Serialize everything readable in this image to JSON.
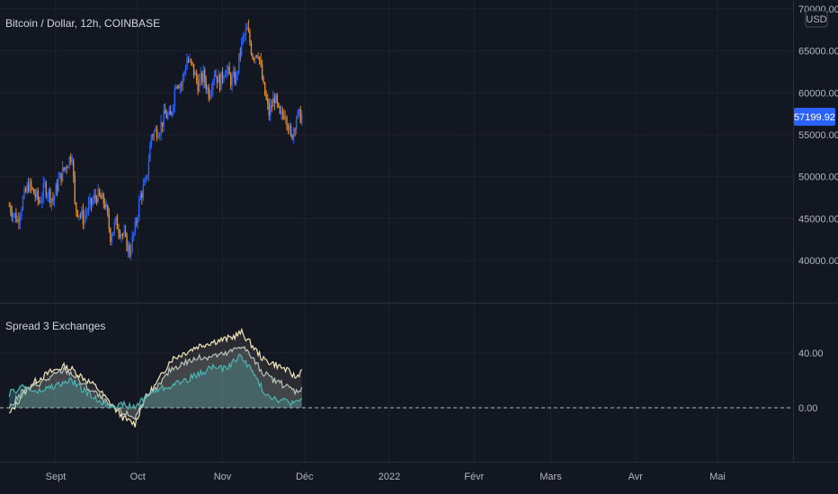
{
  "main_chart": {
    "title": "Bitcoin / Dollar, 12h, COINBASE",
    "currency_badge": "USD",
    "last_price_label": "57199.92",
    "colors": {
      "up": "#2962ff",
      "down": "#e08a2a",
      "price_tag": "#2962ff",
      "grid": "#1e222d",
      "bg": "#131722"
    }
  },
  "indicator": {
    "title": "Spread 3 Exchanges",
    "zero_label": "0.00"
  },
  "time_axis": {
    "labels": [
      "Sept",
      "Oct",
      "Nov",
      "Déc",
      "2022",
      "Févr",
      "Mars",
      "Avr",
      "Mai"
    ]
  },
  "chart_data": [
    {
      "type": "candlestick",
      "title": "Bitcoin / Dollar, 12h, COINBASE",
      "y_ticks": [
        "40000.00",
        "45000.00",
        "50000.00",
        "55000.00",
        "60000.00",
        "65000.00",
        "70000.00"
      ],
      "ylim": [
        35000,
        70500
      ],
      "x_range": [
        "2021-08-15",
        "2022-05-31"
      ],
      "close_series": [
        [
          "2021-08-15",
          46500
        ],
        [
          "2021-08-18",
          44800
        ],
        [
          "2021-08-20",
          47200
        ],
        [
          "2021-08-22",
          49000
        ],
        [
          "2021-08-24",
          48000
        ],
        [
          "2021-08-26",
          47000
        ],
        [
          "2021-08-28",
          48800
        ],
        [
          "2021-08-31",
          47200
        ],
        [
          "2021-09-02",
          49500
        ],
        [
          "2021-09-05",
          51500
        ],
        [
          "2021-09-07",
          52800
        ],
        [
          "2021-09-08",
          46500
        ],
        [
          "2021-09-11",
          45000
        ],
        [
          "2021-09-13",
          46300
        ],
        [
          "2021-09-16",
          47800
        ],
        [
          "2021-09-19",
          46800
        ],
        [
          "2021-09-21",
          43000
        ],
        [
          "2021-09-23",
          44500
        ],
        [
          "2021-09-26",
          42800
        ],
        [
          "2021-09-28",
          41000
        ],
        [
          "2021-09-30",
          43800
        ],
        [
          "2021-10-02",
          47800
        ],
        [
          "2021-10-04",
          49200
        ],
        [
          "2021-10-06",
          55000
        ],
        [
          "2021-10-09",
          55800
        ],
        [
          "2021-10-11",
          57400
        ],
        [
          "2021-10-13",
          57000
        ],
        [
          "2021-10-15",
          61500
        ],
        [
          "2021-10-17",
          61000
        ],
        [
          "2021-10-19",
          64000
        ],
        [
          "2021-10-21",
          63000
        ],
        [
          "2021-10-23",
          61000
        ],
        [
          "2021-10-25",
          62000
        ],
        [
          "2021-10-27",
          60000
        ],
        [
          "2021-10-29",
          62500
        ],
        [
          "2021-10-31",
          61200
        ],
        [
          "2021-11-02",
          63000
        ],
        [
          "2021-11-04",
          61500
        ],
        [
          "2021-11-06",
          61800
        ],
        [
          "2021-11-08",
          66000
        ],
        [
          "2021-11-10",
          67500
        ],
        [
          "2021-11-12",
          64500
        ],
        [
          "2021-11-14",
          65000
        ],
        [
          "2021-11-16",
          60500
        ],
        [
          "2021-11-18",
          57500
        ],
        [
          "2021-11-20",
          59500
        ],
        [
          "2021-11-22",
          57000
        ],
        [
          "2021-11-24",
          57800
        ],
        [
          "2021-11-26",
          54500
        ],
        [
          "2021-11-28",
          57200
        ],
        [
          "2021-11-30",
          57199.92
        ]
      ]
    },
    {
      "type": "line",
      "title": "Spread 3 Exchanges",
      "y_ticks": [
        "0.00",
        "40.00"
      ],
      "ylim": [
        -20,
        62
      ],
      "baseline": 0,
      "series": [
        {
          "color": "#f1e5b8",
          "points": [
            [
              "2021-08-15",
              -5
            ],
            [
              "2021-08-20",
              10
            ],
            [
              "2021-08-25",
              20
            ],
            [
              "2021-08-30",
              26
            ],
            [
              "2021-09-04",
              30
            ],
            [
              "2021-09-07",
              28
            ],
            [
              "2021-09-11",
              22
            ],
            [
              "2021-09-16",
              15
            ],
            [
              "2021-09-21",
              3
            ],
            [
              "2021-09-26",
              -8
            ],
            [
              "2021-09-30",
              -12
            ],
            [
              "2021-10-03",
              5
            ],
            [
              "2021-10-08",
              18
            ],
            [
              "2021-10-13",
              35
            ],
            [
              "2021-10-18",
              40
            ],
            [
              "2021-10-23",
              45
            ],
            [
              "2021-10-28",
              48
            ],
            [
              "2021-11-02",
              50
            ],
            [
              "2021-11-05",
              52
            ],
            [
              "2021-11-08",
              55
            ],
            [
              "2021-11-12",
              45
            ],
            [
              "2021-11-16",
              35
            ],
            [
              "2021-11-20",
              32
            ],
            [
              "2021-11-24",
              28
            ],
            [
              "2021-11-28",
              22
            ],
            [
              "2021-11-30",
              28
            ]
          ]
        },
        {
          "color": "#b9c4b8",
          "points": [
            [
              "2021-08-15",
              0
            ],
            [
              "2021-08-20",
              12
            ],
            [
              "2021-08-25",
              17
            ],
            [
              "2021-08-30",
              22
            ],
            [
              "2021-09-04",
              28
            ],
            [
              "2021-09-07",
              25
            ],
            [
              "2021-09-11",
              17
            ],
            [
              "2021-09-16",
              10
            ],
            [
              "2021-09-21",
              1
            ],
            [
              "2021-09-26",
              -4
            ],
            [
              "2021-09-30",
              -7
            ],
            [
              "2021-10-03",
              4
            ],
            [
              "2021-10-08",
              14
            ],
            [
              "2021-10-13",
              28
            ],
            [
              "2021-10-18",
              33
            ],
            [
              "2021-10-23",
              36
            ],
            [
              "2021-10-28",
              38
            ],
            [
              "2021-11-02",
              39
            ],
            [
              "2021-11-05",
              42
            ],
            [
              "2021-11-08",
              46
            ],
            [
              "2021-11-12",
              36
            ],
            [
              "2021-11-16",
              25
            ],
            [
              "2021-11-20",
              20
            ],
            [
              "2021-11-24",
              16
            ],
            [
              "2021-11-28",
              12
            ],
            [
              "2021-11-30",
              15
            ]
          ]
        },
        {
          "color": "#4fb3b3",
          "points": [
            [
              "2021-08-15",
              10
            ],
            [
              "2021-08-20",
              16
            ],
            [
              "2021-08-25",
              11
            ],
            [
              "2021-08-30",
              15
            ],
            [
              "2021-09-04",
              18
            ],
            [
              "2021-09-07",
              20
            ],
            [
              "2021-09-11",
              13
            ],
            [
              "2021-09-16",
              6
            ],
            [
              "2021-09-21",
              2
            ],
            [
              "2021-09-26",
              2
            ],
            [
              "2021-09-30",
              0
            ],
            [
              "2021-10-03",
              7
            ],
            [
              "2021-10-08",
              13
            ],
            [
              "2021-10-13",
              16
            ],
            [
              "2021-10-18",
              20
            ],
            [
              "2021-10-23",
              24
            ],
            [
              "2021-10-28",
              30
            ],
            [
              "2021-11-02",
              28
            ],
            [
              "2021-11-05",
              34
            ],
            [
              "2021-11-08",
              38
            ],
            [
              "2021-11-12",
              26
            ],
            [
              "2021-11-16",
              12
            ],
            [
              "2021-11-20",
              7
            ],
            [
              "2021-11-24",
              5
            ],
            [
              "2021-11-28",
              3
            ],
            [
              "2021-11-30",
              7
            ]
          ]
        }
      ]
    }
  ]
}
